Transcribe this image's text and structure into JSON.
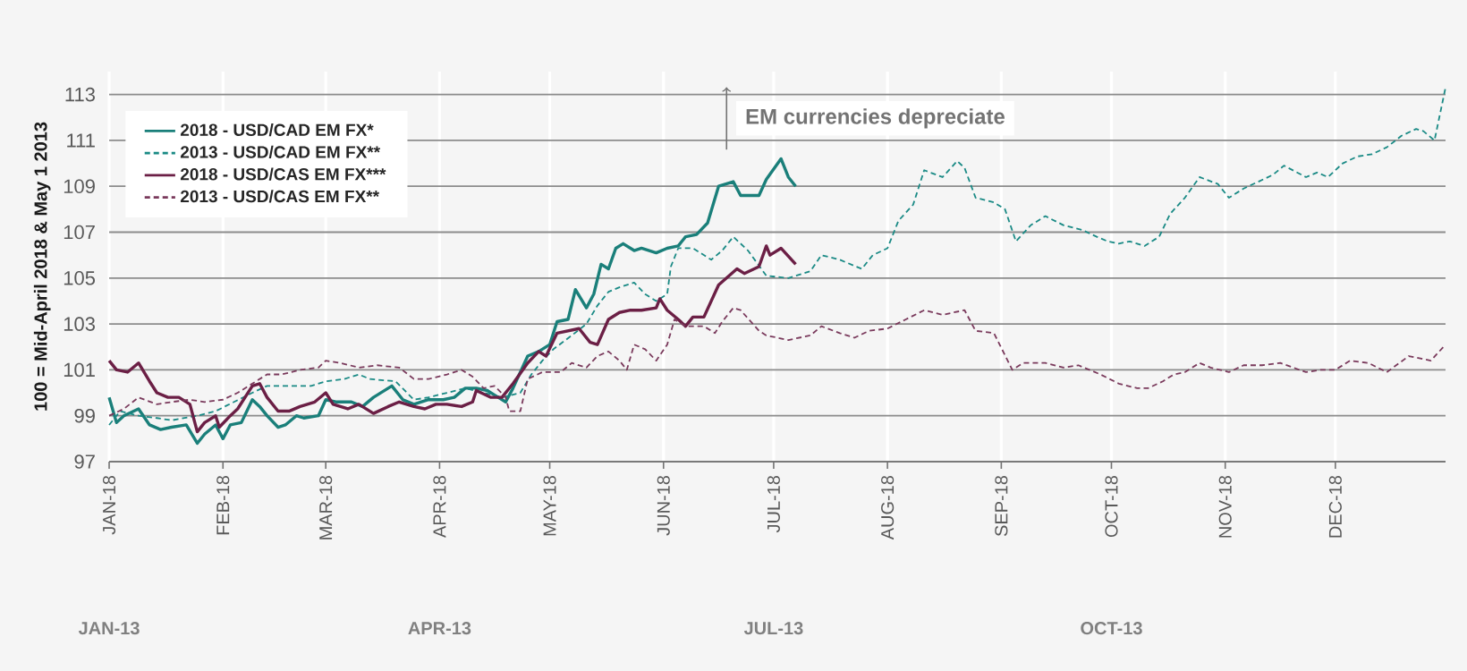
{
  "chart_data": {
    "type": "line",
    "ylabel": "100 = Mid-April 2018 & May 1 2013",
    "annotations": [
      "EM currencies depreciate"
    ],
    "xlim": [
      "2018-01-01",
      "2018-12-31"
    ],
    "ylim": [
      97,
      114
    ],
    "xticks": [
      {
        "value": "2018-01-01",
        "label": "JAN-18"
      },
      {
        "value": "2018-02-01",
        "label": "FEB-18"
      },
      {
        "value": "2018-03-01",
        "label": "MAR-18"
      },
      {
        "value": "2018-04-01",
        "label": "APR-18"
      },
      {
        "value": "2018-05-01",
        "label": "MAY-18"
      },
      {
        "value": "2018-06-01",
        "label": "JUN-18"
      },
      {
        "value": "2018-07-01",
        "label": "JUL-18"
      },
      {
        "value": "2018-08-01",
        "label": "AUG-18"
      },
      {
        "value": "2018-09-01",
        "label": "SEP-18"
      },
      {
        "value": "2018-10-01",
        "label": "OCT-18"
      },
      {
        "value": "2018-11-01",
        "label": "NOV-18"
      },
      {
        "value": "2018-12-01",
        "label": "DEC-18"
      }
    ],
    "x2lim": [
      "2013-01-01",
      "2013-12-31"
    ],
    "x2ticks": [
      {
        "value": "2013-01-01",
        "label": "JAN-13"
      },
      {
        "value": "2013-04-01",
        "label": "APR-13"
      },
      {
        "value": "2013-07-01",
        "label": "JUL-13"
      },
      {
        "value": "2013-10-01",
        "label": "OCT-13"
      }
    ],
    "yticks": [
      97,
      99,
      101,
      103,
      105,
      107,
      109,
      111,
      113
    ],
    "grid": true,
    "legend": "top left",
    "marker": "none",
    "series": [
      {
        "name": "2018 - USD/CAD EM FX*",
        "color": "#1a7f7a",
        "line_style": "solid",
        "x": [
          "2018-01-01",
          "2018-01-03",
          "2018-01-05",
          "2018-01-09",
          "2018-01-12",
          "2018-01-15",
          "2018-01-18",
          "2018-01-22",
          "2018-01-25",
          "2018-01-27",
          "2018-01-30",
          "2018-02-01",
          "2018-02-03",
          "2018-02-06",
          "2018-02-09",
          "2018-02-11",
          "2018-02-13",
          "2018-02-16",
          "2018-02-18",
          "2018-02-21",
          "2018-02-23",
          "2018-02-27",
          "2018-03-01",
          "2018-03-04",
          "2018-03-08",
          "2018-03-11",
          "2018-03-14",
          "2018-03-19",
          "2018-03-22",
          "2018-03-25",
          "2018-03-29",
          "2018-04-02",
          "2018-04-05",
          "2018-04-08",
          "2018-04-11",
          "2018-04-14",
          "2018-04-16",
          "2018-04-19",
          "2018-04-21",
          "2018-04-25",
          "2018-04-28",
          "2018-05-01",
          "2018-05-03",
          "2018-05-06",
          "2018-05-08",
          "2018-05-11",
          "2018-05-13",
          "2018-05-15",
          "2018-05-17",
          "2018-05-19",
          "2018-05-21",
          "2018-05-24",
          "2018-05-26",
          "2018-05-30",
          "2018-06-02",
          "2018-06-05",
          "2018-06-07",
          "2018-06-10",
          "2018-06-13",
          "2018-06-16",
          "2018-06-20",
          "2018-06-22",
          "2018-06-27",
          "2018-06-29",
          "2018-07-03",
          "2018-07-05",
          "2018-07-07"
        ],
        "values": [
          99.8,
          98.7,
          99.0,
          99.3,
          98.6,
          98.4,
          98.5,
          98.6,
          97.8,
          98.2,
          98.6,
          98.0,
          98.6,
          98.7,
          99.7,
          99.4,
          99.0,
          98.5,
          98.6,
          99.0,
          98.9,
          99.0,
          99.7,
          99.6,
          99.6,
          99.4,
          99.8,
          100.3,
          99.7,
          99.5,
          99.7,
          99.7,
          99.8,
          100.2,
          100.2,
          100.1,
          99.9,
          99.6,
          100.2,
          101.6,
          101.8,
          102.1,
          103.1,
          103.2,
          104.5,
          103.7,
          104.3,
          105.6,
          105.4,
          106.3,
          106.5,
          106.2,
          106.3,
          106.1,
          106.3,
          106.4,
          106.8,
          106.9,
          107.4,
          109.0,
          109.2,
          108.6,
          108.6,
          109.3,
          110.2,
          109.4,
          109.0
        ]
      },
      {
        "name": "2013 - USD/CAD EM FX**",
        "color": "#1a8a85",
        "line_style": "dashed",
        "axis": "x2",
        "x": [
          "2013-01-01",
          "2013-01-04",
          "2013-01-09",
          "2013-01-14",
          "2013-01-18",
          "2013-01-25",
          "2013-01-30",
          "2013-02-04",
          "2013-02-09",
          "2013-02-13",
          "2013-02-20",
          "2013-02-25",
          "2013-03-01",
          "2013-03-06",
          "2013-03-10",
          "2013-03-13",
          "2013-03-20",
          "2013-03-25",
          "2013-03-29",
          "2013-04-03",
          "2013-04-08",
          "2013-04-13",
          "2013-04-18",
          "2013-04-23",
          "2013-04-26",
          "2013-04-29",
          "2013-05-02",
          "2013-05-07",
          "2013-05-11",
          "2013-05-14",
          "2013-05-17",
          "2013-05-20",
          "2013-05-24",
          "2013-05-27",
          "2013-05-30",
          "2013-06-02",
          "2013-06-03",
          "2013-06-05",
          "2013-06-09",
          "2013-06-14",
          "2013-06-17",
          "2013-06-20",
          "2013-06-24",
          "2013-06-29",
          "2013-07-05",
          "2013-07-11",
          "2013-07-14",
          "2013-07-19",
          "2013-07-25",
          "2013-07-28",
          "2013-08-01",
          "2013-08-04",
          "2013-08-08",
          "2013-08-11",
          "2013-08-16",
          "2013-08-20",
          "2013-08-22",
          "2013-08-25",
          "2013-08-30",
          "2013-09-02",
          "2013-09-05",
          "2013-09-09",
          "2013-09-13",
          "2013-09-18",
          "2013-09-23",
          "2013-09-27",
          "2013-09-30",
          "2013-10-03",
          "2013-10-06",
          "2013-10-10",
          "2013-10-14",
          "2013-10-17",
          "2013-10-21",
          "2013-10-25",
          "2013-10-30",
          "2013-11-02",
          "2013-11-06",
          "2013-11-10",
          "2013-11-14",
          "2013-11-17",
          "2013-11-23",
          "2013-11-26",
          "2013-11-29",
          "2013-12-03",
          "2013-12-07",
          "2013-12-11",
          "2013-12-15",
          "2013-12-19",
          "2013-12-23",
          "2013-12-25",
          "2013-12-28",
          "2013-12-31"
        ],
        "values": [
          98.6,
          99.2,
          99.0,
          98.9,
          98.8,
          99.0,
          99.2,
          99.6,
          100.0,
          100.3,
          100.3,
          100.3,
          100.5,
          100.6,
          100.8,
          100.6,
          100.5,
          99.7,
          99.8,
          100.0,
          100.2,
          100.0,
          99.8,
          100.0,
          100.8,
          101.4,
          101.9,
          102.5,
          103.0,
          103.8,
          104.4,
          104.6,
          104.8,
          104.3,
          104.0,
          104.3,
          105.5,
          106.3,
          106.3,
          105.8,
          106.2,
          106.8,
          106.2,
          105.1,
          105.0,
          105.3,
          106.0,
          105.8,
          105.4,
          106.0,
          106.3,
          107.5,
          108.2,
          109.7,
          109.4,
          110.1,
          109.8,
          108.5,
          108.3,
          108.0,
          106.6,
          107.3,
          107.7,
          107.3,
          107.1,
          106.8,
          106.6,
          106.5,
          106.6,
          106.4,
          106.8,
          107.8,
          108.5,
          109.4,
          109.1,
          108.5,
          108.9,
          109.2,
          109.5,
          109.9,
          109.4,
          109.6,
          109.4,
          110.0,
          110.3,
          110.4,
          110.7,
          111.2,
          111.5,
          111.4,
          111.0,
          113.3
        ]
      },
      {
        "name": "2018 - USD/CAS EM FX***",
        "color": "#6b1f45",
        "line_style": "solid",
        "x": [
          "2018-01-01",
          "2018-01-03",
          "2018-01-06",
          "2018-01-09",
          "2018-01-12",
          "2018-01-14",
          "2018-01-17",
          "2018-01-20",
          "2018-01-23",
          "2018-01-25",
          "2018-01-27",
          "2018-01-30",
          "2018-01-31",
          "2018-02-03",
          "2018-02-05",
          "2018-02-09",
          "2018-02-11",
          "2018-02-13",
          "2018-02-16",
          "2018-02-19",
          "2018-02-22",
          "2018-02-26",
          "2018-03-01",
          "2018-03-03",
          "2018-03-07",
          "2018-03-10",
          "2018-03-14",
          "2018-03-18",
          "2018-03-21",
          "2018-03-25",
          "2018-03-28",
          "2018-03-31",
          "2018-04-03",
          "2018-04-07",
          "2018-04-10",
          "2018-04-11",
          "2018-04-15",
          "2018-04-18",
          "2018-04-21",
          "2018-04-25",
          "2018-04-28",
          "2018-04-30",
          "2018-05-03",
          "2018-05-06",
          "2018-05-09",
          "2018-05-12",
          "2018-05-14",
          "2018-05-17",
          "2018-05-20",
          "2018-05-23",
          "2018-05-26",
          "2018-05-30",
          "2018-05-31",
          "2018-06-02",
          "2018-06-05",
          "2018-06-07",
          "2018-06-09",
          "2018-06-12",
          "2018-06-16",
          "2018-06-21",
          "2018-06-23",
          "2018-06-27",
          "2018-06-29",
          "2018-06-30",
          "2018-07-03",
          "2018-07-07"
        ],
        "values": [
          101.4,
          101.0,
          100.9,
          101.3,
          100.5,
          100.0,
          99.8,
          99.8,
          99.5,
          98.3,
          98.7,
          99.0,
          98.5,
          99.0,
          99.3,
          100.3,
          100.4,
          99.8,
          99.2,
          99.2,
          99.4,
          99.6,
          100.0,
          99.5,
          99.3,
          99.5,
          99.1,
          99.4,
          99.6,
          99.4,
          99.3,
          99.5,
          99.5,
          99.4,
          99.6,
          100.1,
          99.8,
          99.8,
          100.4,
          101.3,
          101.8,
          101.6,
          102.6,
          102.7,
          102.8,
          102.2,
          102.1,
          103.2,
          103.5,
          103.6,
          103.6,
          103.7,
          104.1,
          103.6,
          103.2,
          102.9,
          103.3,
          103.3,
          104.7,
          105.4,
          105.2,
          105.5,
          106.4,
          106.0,
          106.3,
          105.6
        ]
      },
      {
        "name": "2013 - USD/CAS EM FX**",
        "color": "#7a3a5c",
        "line_style": "dashed",
        "axis": "x2",
        "x": [
          "2013-01-01",
          "2013-01-05",
          "2013-01-09",
          "2013-01-14",
          "2013-01-18",
          "2013-01-23",
          "2013-01-27",
          "2013-02-01",
          "2013-02-05",
          "2013-02-09",
          "2013-02-13",
          "2013-02-17",
          "2013-02-22",
          "2013-02-27",
          "2013-03-01",
          "2013-03-05",
          "2013-03-10",
          "2013-03-15",
          "2013-03-21",
          "2013-03-25",
          "2013-03-29",
          "2013-04-03",
          "2013-04-07",
          "2013-04-10",
          "2013-04-13",
          "2013-04-16",
          "2013-04-19",
          "2013-04-20",
          "2013-04-23",
          "2013-04-25",
          "2013-04-29",
          "2013-05-04",
          "2013-05-07",
          "2013-05-11",
          "2013-05-14",
          "2013-05-17",
          "2013-05-20",
          "2013-05-22",
          "2013-05-24",
          "2013-05-27",
          "2013-05-30",
          "2013-06-02",
          "2013-06-04",
          "2013-06-07",
          "2013-06-12",
          "2013-06-15",
          "2013-06-17",
          "2013-06-20",
          "2013-06-22",
          "2013-06-27",
          "2013-06-29",
          "2013-07-05",
          "2013-07-11",
          "2013-07-14",
          "2013-07-19",
          "2013-07-23",
          "2013-07-27",
          "2013-08-01",
          "2013-08-06",
          "2013-08-11",
          "2013-08-16",
          "2013-08-22",
          "2013-08-25",
          "2013-08-30",
          "2013-09-04",
          "2013-09-07",
          "2013-09-13",
          "2013-09-18",
          "2013-09-22",
          "2013-09-28",
          "2013-10-03",
          "2013-10-08",
          "2013-10-11",
          "2013-10-15",
          "2013-10-18",
          "2013-10-21",
          "2013-10-25",
          "2013-10-28",
          "2013-11-02",
          "2013-11-06",
          "2013-11-11",
          "2013-11-16",
          "2013-11-23",
          "2013-11-27",
          "2013-12-01",
          "2013-12-05",
          "2013-12-10",
          "2013-12-15",
          "2013-12-21",
          "2013-12-27",
          "2013-12-31"
        ],
        "values": [
          99.0,
          99.3,
          99.8,
          99.5,
          99.6,
          99.7,
          99.6,
          99.7,
          100.0,
          100.4,
          100.8,
          100.8,
          101.0,
          101.1,
          101.4,
          101.3,
          101.1,
          101.2,
          101.1,
          100.6,
          100.6,
          100.8,
          101.0,
          100.7,
          100.2,
          100.3,
          99.8,
          99.2,
          99.2,
          100.6,
          100.9,
          100.9,
          101.3,
          101.1,
          101.6,
          101.8,
          101.4,
          101.0,
          102.1,
          101.9,
          101.4,
          102.1,
          103.2,
          102.9,
          102.9,
          102.6,
          103.1,
          103.7,
          103.6,
          102.7,
          102.5,
          102.3,
          102.5,
          102.9,
          102.6,
          102.4,
          102.7,
          102.8,
          103.2,
          103.6,
          103.4,
          103.6,
          102.7,
          102.6,
          101.0,
          101.3,
          101.3,
          101.1,
          101.2,
          100.8,
          100.4,
          100.2,
          100.2,
          100.5,
          100.8,
          100.9,
          101.3,
          101.1,
          100.9,
          101.2,
          101.2,
          101.3,
          100.9,
          101.0,
          101.0,
          101.4,
          101.3,
          100.9,
          101.6,
          101.4,
          102.1
        ]
      }
    ]
  }
}
